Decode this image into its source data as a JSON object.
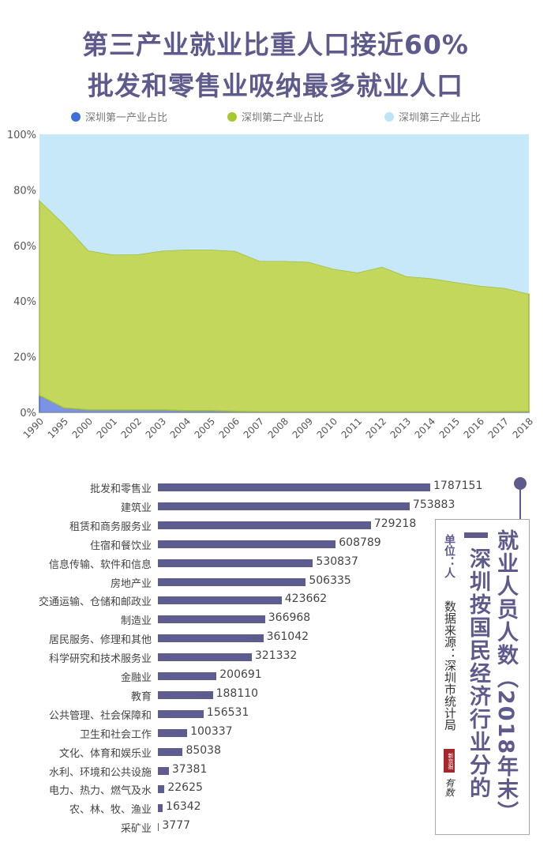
{
  "header": {
    "title_line1": "第三产业就业比重人口接近60%",
    "title_line2": "批发和零售业吸纳最多就业人口"
  },
  "chart_data": [
    {
      "type": "area",
      "stacked": true,
      "normalized": true,
      "title": "",
      "xlabel": "",
      "ylabel": "",
      "ylim": [
        0,
        100
      ],
      "y_ticks": [
        "0%",
        "20%",
        "40%",
        "60%",
        "80%",
        "100%"
      ],
      "legend_position": "top",
      "grid": false,
      "x": [
        "1990",
        "1995",
        "2000",
        "2001",
        "2002",
        "2003",
        "2004",
        "2005",
        "2006",
        "2007",
        "2008",
        "2009",
        "2010",
        "2011",
        "2012",
        "2013",
        "2014",
        "2015",
        "2016",
        "2017",
        "2018"
      ],
      "series": [
        {
          "name": "深圳第一产业占比",
          "color": "#7a93e6",
          "legend_color": "#3f6fd8",
          "values": [
            6.1,
            1.6,
            0.9,
            0.9,
            0.9,
            0.9,
            0.6,
            0.6,
            0.4,
            0.2,
            0.2,
            0.2,
            0.2,
            0.2,
            0.2,
            0.2,
            0.2,
            0.2,
            0.2,
            0.3,
            0.3
          ]
        },
        {
          "name": "深圳第二产业占比",
          "color": "#c3d75c",
          "legend_color": "#a8c832",
          "values": [
            70.1,
            66.2,
            57.3,
            55.8,
            55.9,
            57.2,
            57.9,
            57.9,
            57.6,
            54.2,
            54.2,
            53.9,
            51.4,
            50.1,
            52.1,
            48.7,
            48.0,
            46.6,
            45.3,
            44.4,
            42.3
          ]
        },
        {
          "name": "深圳第三产业占比",
          "color": "#c6e8f8",
          "legend_color": "#bfe4f5",
          "values": [
            23.8,
            32.2,
            41.8,
            43.3,
            43.2,
            41.9,
            41.5,
            41.5,
            42.0,
            45.6,
            45.6,
            45.9,
            48.4,
            49.7,
            47.7,
            51.1,
            51.8,
            53.2,
            54.5,
            55.3,
            57.4
          ]
        }
      ]
    },
    {
      "type": "bar",
      "orientation": "horizontal",
      "title": "深圳按国民经济行业分的就业人员人数（2018年末）",
      "color": "#5c5c8e",
      "categories": [
        "批发和零售业",
        "建筑业",
        "租赁和商务服务业",
        "住宿和餐饮业",
        "信息传输、软件和信息",
        "房地产业",
        "交通运输、仓储和邮政业",
        "制造业",
        "居民服务、修理和其他",
        "科学研究和技术服务业",
        "金融业",
        "教育",
        "公共管理、社会保障和",
        "卫生和社会工作",
        "文化、体育和娱乐业",
        "水利、环境和公共设施",
        "电力、热力、燃气及水",
        "农、林、牧、渔业",
        "采矿业"
      ],
      "values": [
        1787151,
        753883,
        729218,
        608789,
        530837,
        506335,
        423662,
        366968,
        361042,
        321332,
        200691,
        188110,
        156531,
        100337,
        85038,
        37381,
        22625,
        16342,
        3777
      ]
    }
  ],
  "panel": {
    "title_main": "就业人员人数（2018年末）",
    "title_sub": "深圳按国民经济行业分的",
    "unit": "单位：人",
    "source": "数据来源：深圳市统计局",
    "logo": "新京报",
    "logo2": "有数"
  }
}
